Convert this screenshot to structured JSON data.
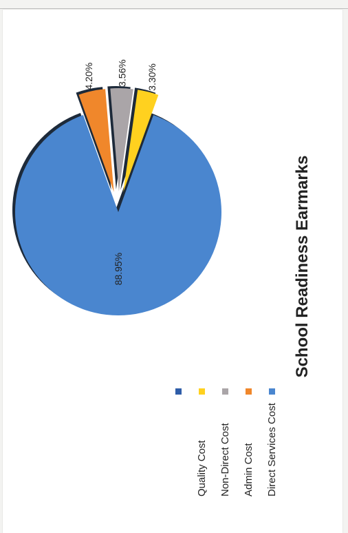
{
  "chart_data": {
    "type": "pie",
    "title": "School Readiness Earmarks",
    "categories": [
      "Direct Services Cost",
      "Admin Cost",
      "Non-Direct Cost",
      "Quality Cost"
    ],
    "values": [
      88.95,
      4.2,
      3.56,
      3.3
    ],
    "labels": [
      "88.95%",
      "4.20%",
      "3.56%",
      "3.30%"
    ],
    "colors": [
      "#4a86cf",
      "#f0872b",
      "#aaa5a8",
      "#ffd11f"
    ],
    "legend_position": "right",
    "exploded": true
  }
}
